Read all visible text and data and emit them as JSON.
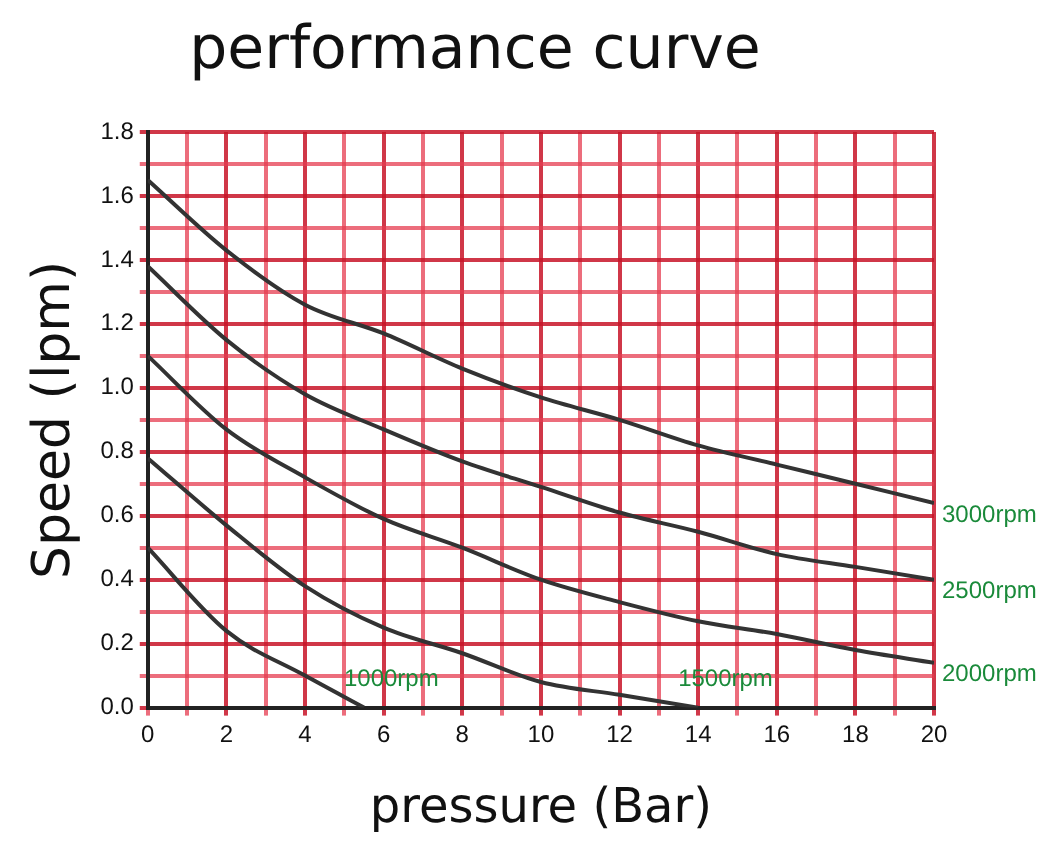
{
  "chart_data": {
    "type": "line",
    "title": "performance curve",
    "xlabel": "pressure (Bar)",
    "ylabel": "Speed (lpm)",
    "x": [
      0,
      2,
      4,
      6,
      8,
      10,
      12,
      14,
      16,
      18,
      20
    ],
    "series": [
      {
        "name": "3000rpm",
        "color": "#333333",
        "values": [
          1.65,
          1.43,
          1.26,
          1.17,
          1.06,
          0.97,
          0.9,
          0.82,
          0.76,
          0.7,
          0.64
        ]
      },
      {
        "name": "2500rpm",
        "color": "#333333",
        "values": [
          1.38,
          1.15,
          0.98,
          0.87,
          0.77,
          0.69,
          0.61,
          0.55,
          0.48,
          0.44,
          0.4
        ]
      },
      {
        "name": "2000rpm",
        "color": "#333333",
        "values": [
          1.1,
          0.87,
          0.72,
          0.59,
          0.5,
          0.4,
          0.33,
          0.27,
          0.23,
          0.18,
          0.14
        ]
      },
      {
        "name": "1500rpm",
        "color": "#333333",
        "x": [
          0,
          2,
          4,
          6,
          8,
          10,
          12,
          14
        ],
        "values": [
          0.78,
          0.57,
          0.38,
          0.25,
          0.17,
          0.08,
          0.04,
          0
        ]
      },
      {
        "name": "1000rpm",
        "color": "#333333",
        "x": [
          0,
          2,
          4,
          5.5
        ],
        "values": [
          0.5,
          0.24,
          0.1,
          0
        ]
      }
    ],
    "xlim": [
      0,
      20
    ],
    "ylim": [
      0,
      1.8
    ],
    "xticks": [
      0,
      {
        "value": 1,
        "label": null
      },
      2,
      {
        "value": 3,
        "label": null
      },
      4,
      {
        "value": 5,
        "label": null
      },
      6,
      {
        "value": 7,
        "label": null
      },
      8,
      {
        "value": 9,
        "label": null
      },
      10,
      {
        "value": 11,
        "label": null
      },
      12,
      {
        "value": 13,
        "label": null
      },
      14,
      {
        "value": 15,
        "label": null
      },
      16,
      {
        "value": 17,
        "label": null
      },
      18,
      {
        "value": 19,
        "label": null
      },
      20
    ],
    "yticks": [
      {
        "value": 0,
        "label": "0.0"
      },
      {
        "value": 0.1,
        "label": null
      },
      0.2,
      {
        "value": 0.3,
        "label": null
      },
      0.4,
      {
        "value": 0.5,
        "label": null
      },
      0.6,
      {
        "value": 0.7,
        "label": null
      },
      0.8,
      {
        "value": 0.9,
        "label": null
      },
      {
        "value": 1,
        "label": "1.0"
      },
      {
        "value": 1.1,
        "label": null
      },
      1.2,
      {
        "value": 1.3,
        "label": null
      },
      1.4,
      {
        "value": 1.5,
        "label": null
      },
      1.6,
      {
        "value": 1.7,
        "label": null
      },
      1.8
    ],
    "grid": true,
    "legend": false,
    "marker": "none",
    "line_style": "solid"
  }
}
